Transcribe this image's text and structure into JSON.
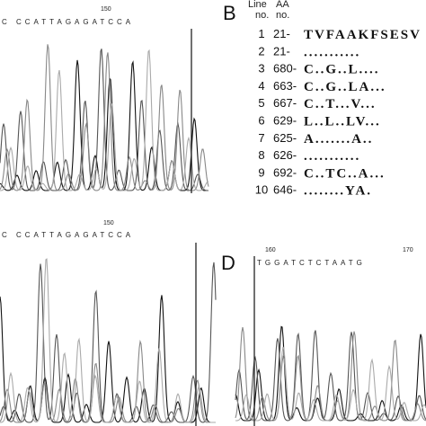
{
  "panel_a": {
    "sequence": "C CCATTAGAGATCCA",
    "position": "150"
  },
  "panel_b": {
    "label": "B",
    "headers": [
      "Line no.",
      "AA no."
    ],
    "rows": [
      [
        "1",
        "21-",
        "TVFAAKFSESV"
      ],
      [
        "2",
        "21-",
        "..........."
      ],
      [
        "3",
        "680-",
        "C..G..L...."
      ],
      [
        "4",
        "663-",
        "C..G..LA..."
      ],
      [
        "5",
        "667-",
        "C..T...V..."
      ],
      [
        "6",
        "629-",
        "L..L..LV..."
      ],
      [
        "7",
        "625-",
        "A.......A.."
      ],
      [
        "8",
        "626-",
        "..........."
      ],
      [
        "9",
        "692-",
        "C..TC..A..."
      ],
      [
        "10",
        "646-",
        "........YA."
      ]
    ]
  },
  "panel_c": {
    "sequence": "C CCATTAGAGATCCA",
    "position": "150"
  },
  "panel_d": {
    "label": "D",
    "sequence": "TGGATCTCTAATG",
    "positions": [
      "160",
      "170"
    ]
  }
}
